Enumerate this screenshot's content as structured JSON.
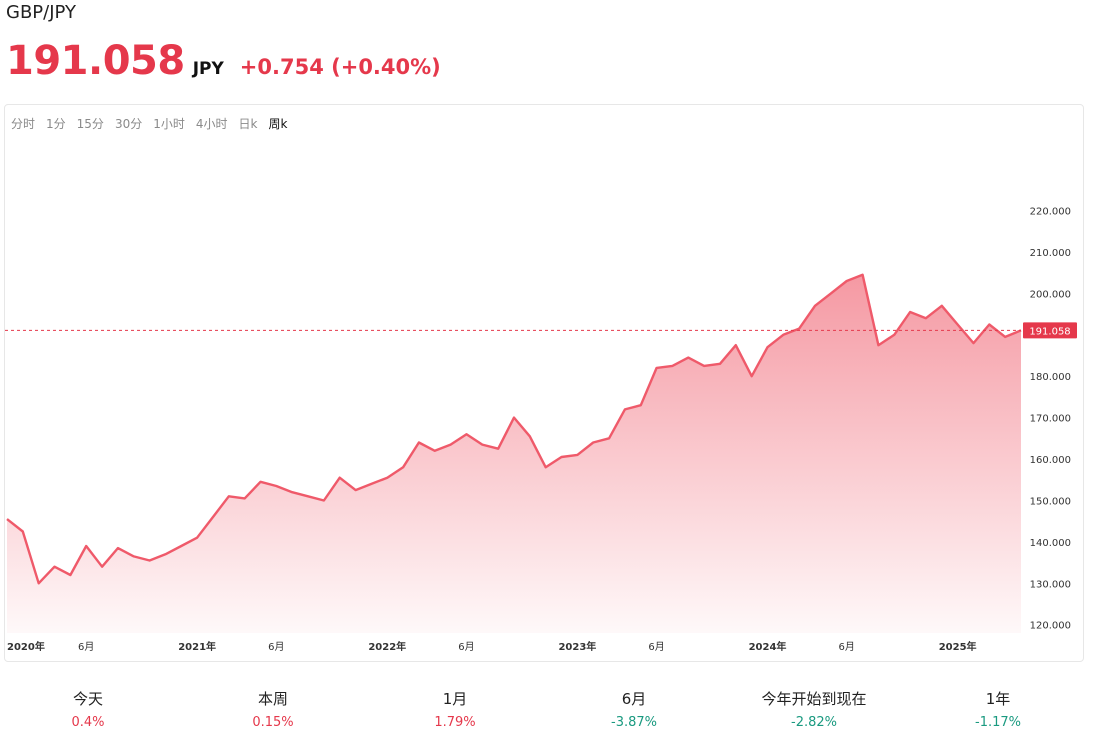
{
  "header": {
    "pair": "GBP/JPY",
    "price": "191.058",
    "currency": "JPY",
    "change": "+0.754 (+0.40%)",
    "price_color": "#e5384b"
  },
  "timeframes": [
    {
      "label": "分时",
      "active": false
    },
    {
      "label": "1分",
      "active": false
    },
    {
      "label": "15分",
      "active": false
    },
    {
      "label": "30分",
      "active": false
    },
    {
      "label": "1小时",
      "active": false
    },
    {
      "label": "4小时",
      "active": false
    },
    {
      "label": "日k",
      "active": false
    },
    {
      "label": "周k",
      "active": true
    }
  ],
  "chart_data": {
    "type": "area",
    "x_labels": [
      "2020年",
      "6月",
      "2021年",
      "6月",
      "2022年",
      "6月",
      "2023年",
      "6月",
      "2024年",
      "6月",
      "2025年"
    ],
    "x_label_dates": [
      "2020-01",
      "2020-06",
      "2021-01",
      "2021-06",
      "2022-01",
      "2022-06",
      "2023-01",
      "2023-06",
      "2024-01",
      "2024-06",
      "2025-01"
    ],
    "y_ticks": [
      "120.000",
      "130.000",
      "140.000",
      "150.000",
      "160.000",
      "170.000",
      "180.000",
      "190.000",
      "200.000",
      "210.000",
      "220.000"
    ],
    "ylim": [
      118,
      231
    ],
    "current_value": 191.058,
    "current_label": "191.058",
    "line_color": "#ef5a6a",
    "grid": false,
    "x": [
      "2020-01",
      "2020-02",
      "2020-03",
      "2020-04",
      "2020-05",
      "2020-06",
      "2020-07",
      "2020-08",
      "2020-09",
      "2020-10",
      "2020-11",
      "2020-12",
      "2021-01",
      "2021-02",
      "2021-03",
      "2021-04",
      "2021-05",
      "2021-06",
      "2021-07",
      "2021-08",
      "2021-09",
      "2021-10",
      "2021-11",
      "2021-12",
      "2022-01",
      "2022-02",
      "2022-03",
      "2022-04",
      "2022-05",
      "2022-06",
      "2022-07",
      "2022-08",
      "2022-09",
      "2022-10",
      "2022-11",
      "2022-12",
      "2023-01",
      "2023-02",
      "2023-03",
      "2023-04",
      "2023-05",
      "2023-06",
      "2023-07",
      "2023-08",
      "2023-09",
      "2023-10",
      "2023-11",
      "2023-12",
      "2024-01",
      "2024-02",
      "2024-03",
      "2024-04",
      "2024-05",
      "2024-06",
      "2024-07",
      "2024-08",
      "2024-09",
      "2024-10",
      "2024-11",
      "2024-12",
      "2025-01",
      "2025-02",
      "2025-03",
      "2025-04",
      "2025-05"
    ],
    "values": [
      145.5,
      142.5,
      130.0,
      134.0,
      132.0,
      139.0,
      134.0,
      138.5,
      136.5,
      135.5,
      137.0,
      139.0,
      141.0,
      146.0,
      151.0,
      150.5,
      154.5,
      153.5,
      152.0,
      151.0,
      150.0,
      155.5,
      152.5,
      154.0,
      155.5,
      158.0,
      164.0,
      162.0,
      163.5,
      166.0,
      163.5,
      162.5,
      170.0,
      165.5,
      158.0,
      160.5,
      161.0,
      164.0,
      165.0,
      172.0,
      173.0,
      182.0,
      182.5,
      184.5,
      182.5,
      183.0,
      187.5,
      180.0,
      187.0,
      190.0,
      191.5,
      197.0,
      200.0,
      203.0,
      204.5,
      187.5,
      190.0,
      195.5,
      194.0,
      197.0,
      192.5,
      188.0,
      192.5,
      189.5,
      191.058
    ]
  },
  "stats": [
    {
      "label": "今天",
      "value": "0.4%",
      "dir": "pos"
    },
    {
      "label": "本周",
      "value": "0.15%",
      "dir": "pos"
    },
    {
      "label": "1月",
      "value": "1.79%",
      "dir": "pos"
    },
    {
      "label": "6月",
      "value": "-3.87%",
      "dir": "neg"
    },
    {
      "label": "今年开始到现在",
      "value": "-2.82%",
      "dir": "neg"
    },
    {
      "label": "1年",
      "value": "-1.17%",
      "dir": "neg"
    }
  ]
}
